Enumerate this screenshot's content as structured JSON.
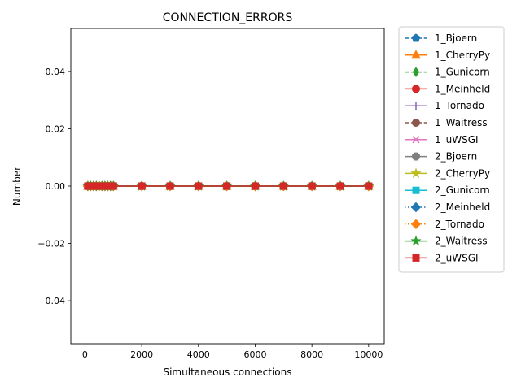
{
  "chart_data": {
    "type": "line",
    "title": "CONNECTION_ERRORS",
    "xlabel": "Simultaneous connections",
    "ylabel": "Number",
    "xlim": [
      -500,
      10550
    ],
    "ylim": [
      -0.055,
      0.055
    ],
    "xticks": [
      0,
      2000,
      4000,
      6000,
      8000,
      10000
    ],
    "xtick_labels": [
      "0",
      "2000",
      "4000",
      "6000",
      "8000",
      "10000"
    ],
    "yticks": [
      -0.04,
      -0.02,
      0.0,
      0.02,
      0.04
    ],
    "ytick_labels": [
      "−0.04",
      "−0.02",
      "0.00",
      "0.02",
      "0.04"
    ],
    "grid": false,
    "legend_position": "outside-right",
    "x": [
      100,
      200,
      300,
      400,
      500,
      600,
      700,
      800,
      900,
      1000,
      2000,
      3000,
      4000,
      5000,
      6000,
      7000,
      8000,
      9000,
      10000
    ],
    "series": [
      {
        "name": "1_Bjoern",
        "color": "#1f77b4",
        "marker": "pentagon",
        "linestyle": "dashed",
        "values": [
          0,
          0,
          0,
          0,
          0,
          0,
          0,
          0,
          0,
          0,
          0,
          0,
          0,
          0,
          0,
          0,
          0,
          0,
          0
        ]
      },
      {
        "name": "1_CherryPy",
        "color": "#ff7f0e",
        "marker": "triangle-up",
        "linestyle": "solid",
        "values": [
          0,
          0,
          0,
          0,
          0,
          0,
          0,
          0,
          0,
          0,
          0,
          0,
          0,
          0,
          0,
          0,
          0,
          0,
          0
        ]
      },
      {
        "name": "1_Gunicorn",
        "color": "#2ca02c",
        "marker": "thin-diamond",
        "linestyle": "dashed",
        "values": [
          0,
          0,
          0,
          0,
          0,
          0,
          0,
          0,
          0,
          0,
          0,
          0,
          0,
          0,
          0,
          0,
          0,
          0,
          0
        ]
      },
      {
        "name": "1_Meinheld",
        "color": "#d62728",
        "marker": "circle",
        "linestyle": "solid",
        "values": [
          0,
          0,
          0,
          0,
          0,
          0,
          0,
          0,
          0,
          0,
          0,
          0,
          0,
          0,
          0,
          0,
          0,
          0,
          0
        ]
      },
      {
        "name": "1_Tornado",
        "color": "#9467bd",
        "marker": "plus",
        "linestyle": "solid",
        "values": [
          0,
          0,
          0,
          0,
          0,
          0,
          0,
          0,
          0,
          0,
          0,
          0,
          0,
          0,
          0,
          0,
          0,
          0,
          0
        ]
      },
      {
        "name": "1_Waitress",
        "color": "#8c564b",
        "marker": "circle",
        "linestyle": "dashed",
        "values": [
          0,
          0,
          0,
          0,
          0,
          0,
          0,
          0,
          0,
          0,
          0,
          0,
          0,
          0,
          0,
          0,
          0,
          0,
          0
        ]
      },
      {
        "name": "1_uWSGI",
        "color": "#e377c2",
        "marker": "x",
        "linestyle": "solid",
        "values": [
          0,
          0,
          0,
          0,
          0,
          0,
          0,
          0,
          0,
          0,
          0,
          0,
          0,
          0,
          0,
          0,
          0,
          0,
          0
        ]
      },
      {
        "name": "2_Bjoern",
        "color": "#7f7f7f",
        "marker": "octagon",
        "linestyle": "solid",
        "values": [
          0,
          0,
          0,
          0,
          0,
          0,
          0,
          0,
          0,
          0,
          0,
          0,
          0,
          0,
          0,
          0,
          0,
          0,
          0
        ]
      },
      {
        "name": "2_CherryPy",
        "color": "#bcbd22",
        "marker": "star",
        "linestyle": "solid",
        "values": [
          0,
          0,
          0,
          0,
          0,
          0,
          0,
          0,
          0,
          0,
          0,
          0,
          0,
          0,
          0,
          0,
          0,
          0,
          0
        ]
      },
      {
        "name": "2_Gunicorn",
        "color": "#17becf",
        "marker": "square",
        "linestyle": "solid",
        "values": [
          0,
          0,
          0,
          0,
          0,
          0,
          0,
          0,
          0,
          0,
          0,
          0,
          0,
          0,
          0,
          0,
          0,
          0,
          0
        ]
      },
      {
        "name": "2_Meinheld",
        "color": "#1f77b4",
        "marker": "diamond",
        "linestyle": "dotted",
        "values": [
          0,
          0,
          0,
          0,
          0,
          0,
          0,
          0,
          0,
          0,
          0,
          0,
          0,
          0,
          0,
          0,
          0,
          0,
          0
        ]
      },
      {
        "name": "2_Tornado",
        "color": "#ff7f0e",
        "marker": "diamond",
        "linestyle": "dotted",
        "values": [
          0,
          0,
          0,
          0,
          0,
          0,
          0,
          0,
          0,
          0,
          0,
          0,
          0,
          0,
          0,
          0,
          0,
          0,
          0
        ]
      },
      {
        "name": "2_Waitress",
        "color": "#2ca02c",
        "marker": "star",
        "linestyle": "solid",
        "values": [
          0,
          0,
          0,
          0,
          0,
          0,
          0,
          0,
          0,
          0,
          0,
          0,
          0,
          0,
          0,
          0,
          0,
          0,
          0
        ]
      },
      {
        "name": "2_uWSGI",
        "color": "#d62728",
        "marker": "square",
        "linestyle": "solid",
        "values": [
          0,
          0,
          0,
          0,
          0,
          0,
          0,
          0,
          0,
          0,
          0,
          0,
          0,
          0,
          0,
          0,
          0,
          0,
          0
        ]
      }
    ]
  }
}
